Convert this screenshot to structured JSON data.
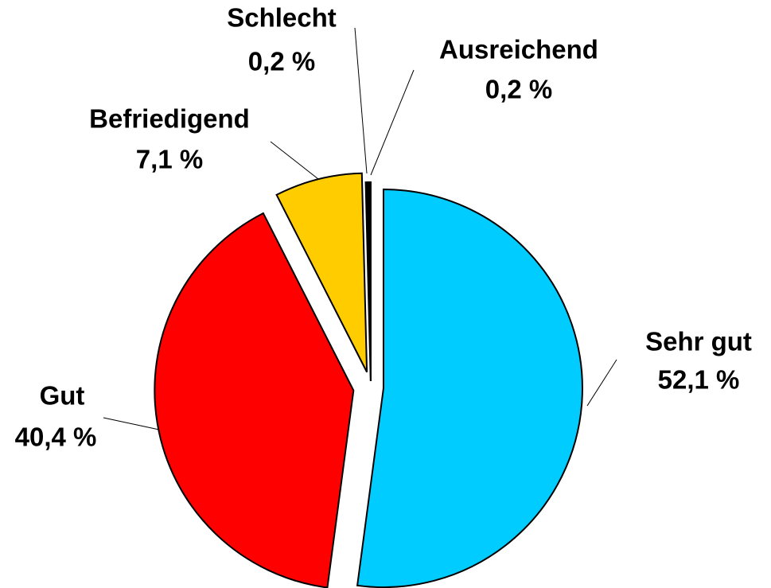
{
  "chart_data": {
    "type": "pie",
    "categories": [
      "Sehr gut",
      "Gut",
      "Befriedigend",
      "Ausreichend",
      "Schlecht"
    ],
    "values": [
      52.1,
      40.4,
      7.1,
      0.2,
      0.2
    ],
    "value_labels": [
      "52,1 %",
      "40,4 %",
      "7,1 %",
      "0,2 %",
      "0,2 %"
    ],
    "colors": [
      "#00ccff",
      "#ff0000",
      "#ffcc00",
      "#000000",
      "#000000"
    ]
  }
}
